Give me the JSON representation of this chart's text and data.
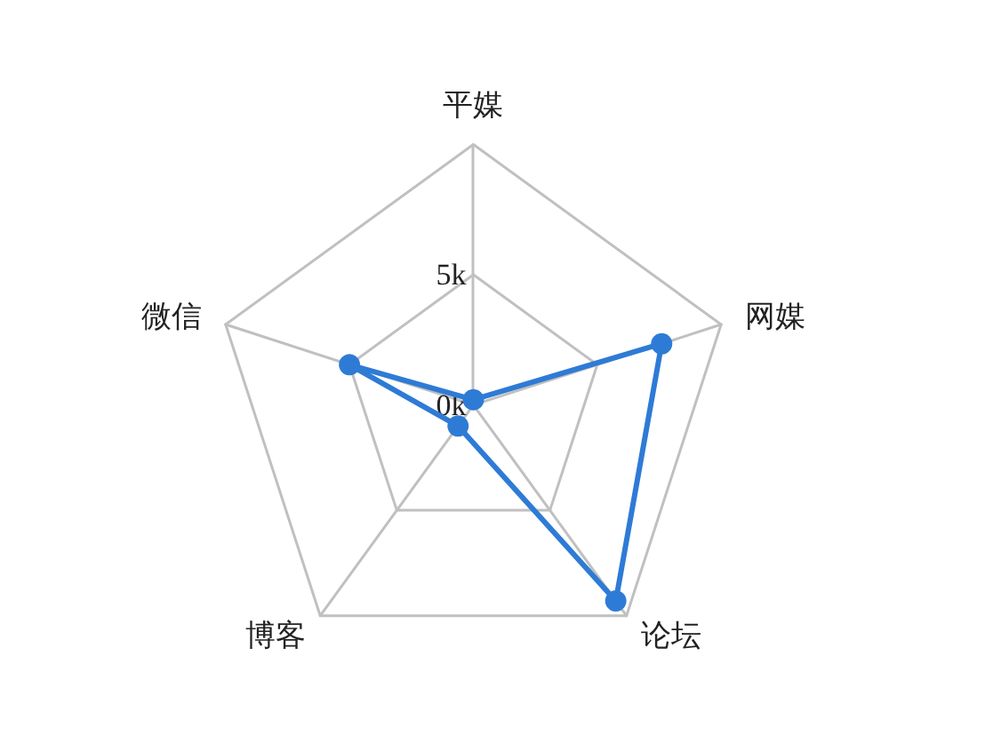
{
  "chart_data": {
    "type": "radar",
    "categories": [
      "平媒",
      "网媒",
      "论坛",
      "博客",
      "微信"
    ],
    "series": [
      {
        "color": "#2e7bd6",
        "values": [
          0.2,
          7.6,
          9.3,
          1.0,
          5.0
        ]
      }
    ],
    "ylim": [
      0,
      10
    ],
    "yticks": [
      {
        "value": 0,
        "label": "0k"
      },
      {
        "value": 5,
        "label": "5k"
      }
    ],
    "marker": "circle",
    "line_style": "solid"
  }
}
